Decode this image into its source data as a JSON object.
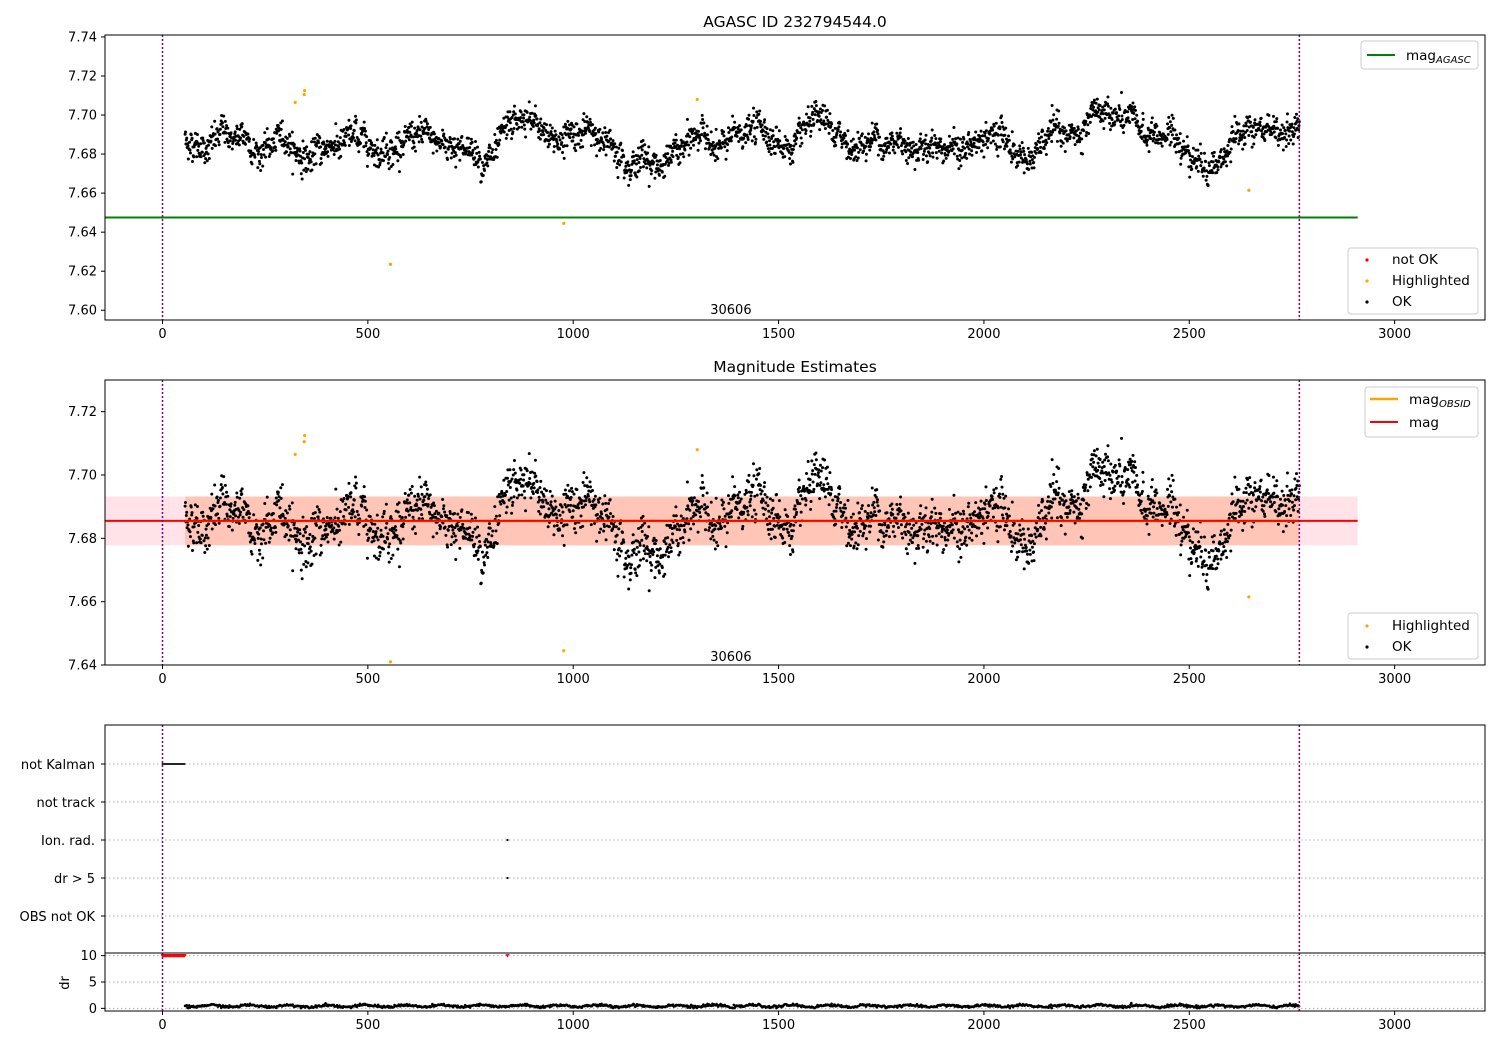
{
  "chart_data": [
    {
      "type": "scatter",
      "title": "AGASC ID 232794544.0",
      "xlim": [
        -140,
        3220
      ],
      "ylim": [
        7.595,
        7.741
      ],
      "xticks": [
        0,
        500,
        1000,
        1500,
        2000,
        2500,
        3000
      ],
      "yticks": [
        7.6,
        7.62,
        7.64,
        7.66,
        7.68,
        7.7,
        7.72,
        7.74
      ],
      "xtick_labels": [
        "0",
        "500",
        "1000",
        "1500",
        "2000",
        "2500",
        "3000"
      ],
      "ytick_labels": [
        "7.60",
        "7.62",
        "7.64",
        "7.66",
        "7.68",
        "7.70",
        "7.72",
        "7.74"
      ],
      "vlines": [
        0,
        2768
      ],
      "hline": {
        "name": "mag",
        "sub": "AGASC",
        "y": 7.6475,
        "x_range": [
          -140,
          2910
        ],
        "color": "#008000"
      },
      "obsid_label": {
        "text": "30606",
        "x": 1384,
        "y": 7.6
      },
      "ok_band": {
        "x_range": [
          55,
          2768
        ]
      },
      "series": [
        {
          "name": "not OK",
          "color": "#ff0000",
          "points": []
        },
        {
          "name": "Highlighted",
          "color": "#ffa500",
          "points": [
            [
              323,
              7.7065
            ],
            [
              345,
              7.7105
            ],
            [
              346,
              7.7125
            ],
            [
              1302,
              7.708
            ],
            [
              555,
              7.6235
            ],
            [
              977,
              7.6445
            ],
            [
              2645,
              7.6615
            ]
          ]
        },
        {
          "name": "OK",
          "color": "#000000",
          "description": "dense cloud of ~2700 points, one per dwell",
          "mean": 7.6855,
          "scatter": 0.0065
        }
      ],
      "legend": {
        "lines": [
          {
            "text": "mag",
            "sub": "AGASC",
            "color": "#008000"
          }
        ],
        "markers": [
          {
            "text": "not OK",
            "color": "#ff0000"
          },
          {
            "text": "Highlighted",
            "color": "#ffa500"
          },
          {
            "text": "OK",
            "color": "#000000"
          }
        ]
      }
    },
    {
      "type": "scatter",
      "title": "Magnitude Estimates",
      "xlim": [
        -140,
        3220
      ],
      "ylim": [
        7.64,
        7.73
      ],
      "xticks": [
        0,
        500,
        1000,
        1500,
        2000,
        2500,
        3000
      ],
      "yticks": [
        7.64,
        7.66,
        7.68,
        7.7,
        7.72
      ],
      "xtick_labels": [
        "0",
        "500",
        "1000",
        "1500",
        "2000",
        "2500",
        "3000"
      ],
      "ytick_labels": [
        "7.64",
        "7.66",
        "7.68",
        "7.70",
        "7.72"
      ],
      "vlines": [
        0,
        2768
      ],
      "mag_line": {
        "name": "mag",
        "y": 7.6855,
        "color": "#ff0000",
        "x_range": [
          -140,
          2910
        ]
      },
      "mag_band": {
        "y": [
          7.6778,
          7.6932
        ],
        "x_range": [
          -140,
          2910
        ],
        "color": "#ffc0cb"
      },
      "obsid_line": {
        "name": "mag",
        "sub": "OBSID",
        "y": 7.6855,
        "color": "#ffa500",
        "x_range": [
          55,
          2768
        ]
      },
      "obsid_band": {
        "y": [
          7.6778,
          7.6932
        ],
        "x_range": [
          55,
          2768
        ],
        "color": "#ffa07a"
      },
      "obsid_label": {
        "text": "30606",
        "x": 1384,
        "y": 7.6425
      },
      "series": [
        {
          "name": "Highlighted",
          "color": "#ffa500",
          "points": [
            [
              323,
              7.7065
            ],
            [
              345,
              7.7105
            ],
            [
              346,
              7.7125
            ],
            [
              1302,
              7.708
            ],
            [
              555,
              7.641
            ],
            [
              977,
              7.6445
            ],
            [
              2645,
              7.6615
            ]
          ]
        },
        {
          "name": "OK",
          "color": "#000000",
          "description": "same dwells as the top panel",
          "mean": 7.6855,
          "scatter": 0.0065
        }
      ],
      "legend": {
        "lines": [
          {
            "text": "mag",
            "sub": "OBSID",
            "color": "#ffa500"
          },
          {
            "text": "mag",
            "sub": "",
            "color": "#ff0000"
          }
        ],
        "markers": [
          {
            "text": "Highlighted",
            "color": "#ffa500"
          },
          {
            "text": "OK",
            "color": "#000000"
          }
        ]
      }
    },
    {
      "type": "scatter",
      "title": "",
      "xlim": [
        -140,
        3220
      ],
      "category_labels": [
        "not Kalman",
        "not track",
        "Ion. rad.",
        "dr > 5",
        "OBS not OK"
      ],
      "flags": [
        {
          "category": "not Kalman",
          "x_range": [
            0,
            55
          ]
        },
        {
          "category": "Ion. rad.",
          "x": [
            840
          ]
        },
        {
          "category": "dr > 5",
          "x": [
            840
          ]
        }
      ],
      "vlines": [
        0,
        2768
      ]
    },
    {
      "type": "scatter",
      "title": "",
      "ylabel": "dr",
      "xlim": [
        -140,
        3220
      ],
      "ylim": [
        -0.5,
        10.5
      ],
      "xticks": [
        0,
        500,
        1000,
        1500,
        2000,
        2500,
        3000
      ],
      "xtick_labels": [
        "0",
        "500",
        "1000",
        "1500",
        "2000",
        "2500",
        "3000"
      ],
      "yticks": [
        0,
        5,
        10
      ],
      "ytick_labels": [
        "0",
        "5",
        "10"
      ],
      "vlines": [
        0,
        2768
      ],
      "clipped_points": {
        "y": 10,
        "color": "#ff0000",
        "x_range": [
          0,
          55
        ],
        "x_extra": [
          840
        ]
      },
      "dr_series": {
        "color": "#000000",
        "x_range": [
          55,
          2768
        ],
        "mean": 0.45
      }
    }
  ]
}
